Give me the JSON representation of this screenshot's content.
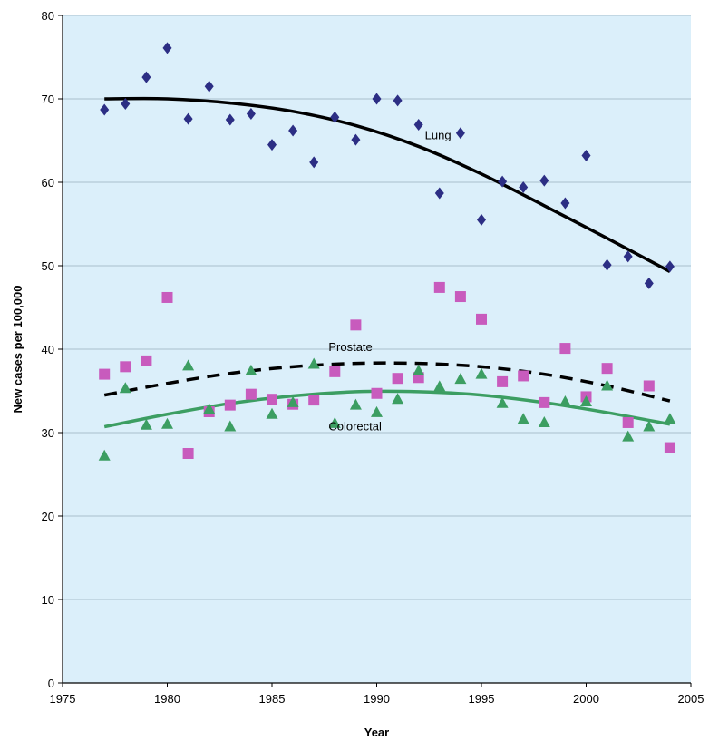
{
  "chart_data": {
    "type": "scatter",
    "xlabel": "Year",
    "ylabel": "New cases per 100,000",
    "xlim": [
      1975,
      2005
    ],
    "ylim": [
      0,
      80
    ],
    "xticks": [
      1975,
      1980,
      1985,
      1990,
      1995,
      2000,
      2005
    ],
    "yticks": [
      0,
      10,
      20,
      30,
      40,
      50,
      60,
      70,
      80
    ],
    "grid": "horizontal",
    "plot_background": "#dbeffa",
    "series": [
      {
        "name": "Lung",
        "marker": "diamond",
        "color": "#2c2e84",
        "x": [
          1977,
          1978,
          1979,
          1980,
          1981,
          1982,
          1983,
          1984,
          1985,
          1986,
          1987,
          1988,
          1989,
          1990,
          1991,
          1992,
          1993,
          1994,
          1995,
          1996,
          1997,
          1998,
          1999,
          2000,
          2001,
          2002,
          2003,
          2004
        ],
        "y": [
          68.7,
          69.4,
          72.6,
          76.1,
          67.6,
          71.5,
          67.5,
          68.2,
          64.5,
          66.2,
          62.4,
          67.8,
          65.1,
          70.0,
          69.8,
          66.9,
          58.7,
          65.9,
          55.5,
          60.1,
          59.4,
          60.2,
          57.5,
          63.2,
          50.1,
          51.1,
          47.9,
          49.9
        ],
        "trend": {
          "style": "solid",
          "color": "#000000",
          "x": [
            1977,
            1980,
            1983,
            1986,
            1989,
            1992,
            1995,
            1998,
            2001,
            2004
          ],
          "y": [
            70.0,
            70.0,
            69.5,
            68.5,
            66.8,
            64.3,
            61.0,
            57.2,
            53.3,
            49.3
          ]
        }
      },
      {
        "name": "Prostate",
        "marker": "square",
        "color": "#c85bbd",
        "x": [
          1977,
          1978,
          1979,
          1980,
          1981,
          1982,
          1983,
          1984,
          1985,
          1986,
          1987,
          1988,
          1989,
          1990,
          1991,
          1992,
          1993,
          1994,
          1995,
          1996,
          1997,
          1998,
          1999,
          2000,
          2001,
          2002,
          2003,
          2004
        ],
        "y": [
          37.0,
          37.9,
          38.6,
          46.2,
          27.5,
          32.5,
          33.3,
          34.6,
          34.0,
          33.4,
          33.9,
          37.3,
          42.9,
          34.7,
          36.5,
          36.6,
          47.4,
          46.3,
          43.6,
          36.1,
          36.8,
          33.6,
          40.1,
          34.3,
          37.7,
          31.2,
          35.6,
          28.2
        ],
        "trend": {
          "style": "dashed",
          "color": "#000000",
          "x": [
            1977,
            1980,
            1983,
            1986,
            1989,
            1992,
            1995,
            1998,
            2001,
            2004
          ],
          "y": [
            34.5,
            35.9,
            37.1,
            37.9,
            38.3,
            38.3,
            37.9,
            37.0,
            35.6,
            33.8
          ]
        }
      },
      {
        "name": "Colorectal",
        "marker": "triangle",
        "color": "#3c9e62",
        "x": [
          1977,
          1978,
          1979,
          1980,
          1981,
          1982,
          1983,
          1984,
          1985,
          1986,
          1987,
          1988,
          1989,
          1990,
          1991,
          1992,
          1993,
          1994,
          1995,
          1996,
          1997,
          1998,
          1999,
          2000,
          2001,
          2002,
          2003,
          2004
        ],
        "y": [
          27.2,
          35.3,
          30.9,
          31.0,
          38.0,
          32.8,
          30.7,
          37.4,
          32.2,
          33.6,
          38.2,
          31.1,
          33.3,
          32.4,
          34.0,
          37.4,
          35.5,
          36.4,
          37.0,
          33.5,
          31.6,
          31.2,
          33.7,
          33.7,
          35.6,
          29.5,
          30.7,
          31.6
        ],
        "trend": {
          "style": "solid",
          "color": "#3c9e62",
          "x": [
            1977,
            1980,
            1983,
            1986,
            1989,
            1992,
            1995,
            1998,
            2001,
            2004
          ],
          "y": [
            30.7,
            32.2,
            33.5,
            34.4,
            34.9,
            34.9,
            34.5,
            33.6,
            32.4,
            31.0
          ]
        }
      }
    ],
    "labels": [
      {
        "text": "Lung",
        "x": 1992.3,
        "y": 65.7
      },
      {
        "text": "Prostate",
        "x": 1987.7,
        "y": 40.3
      },
      {
        "text": "Colorectal",
        "x": 1987.7,
        "y": 30.8
      }
    ]
  }
}
